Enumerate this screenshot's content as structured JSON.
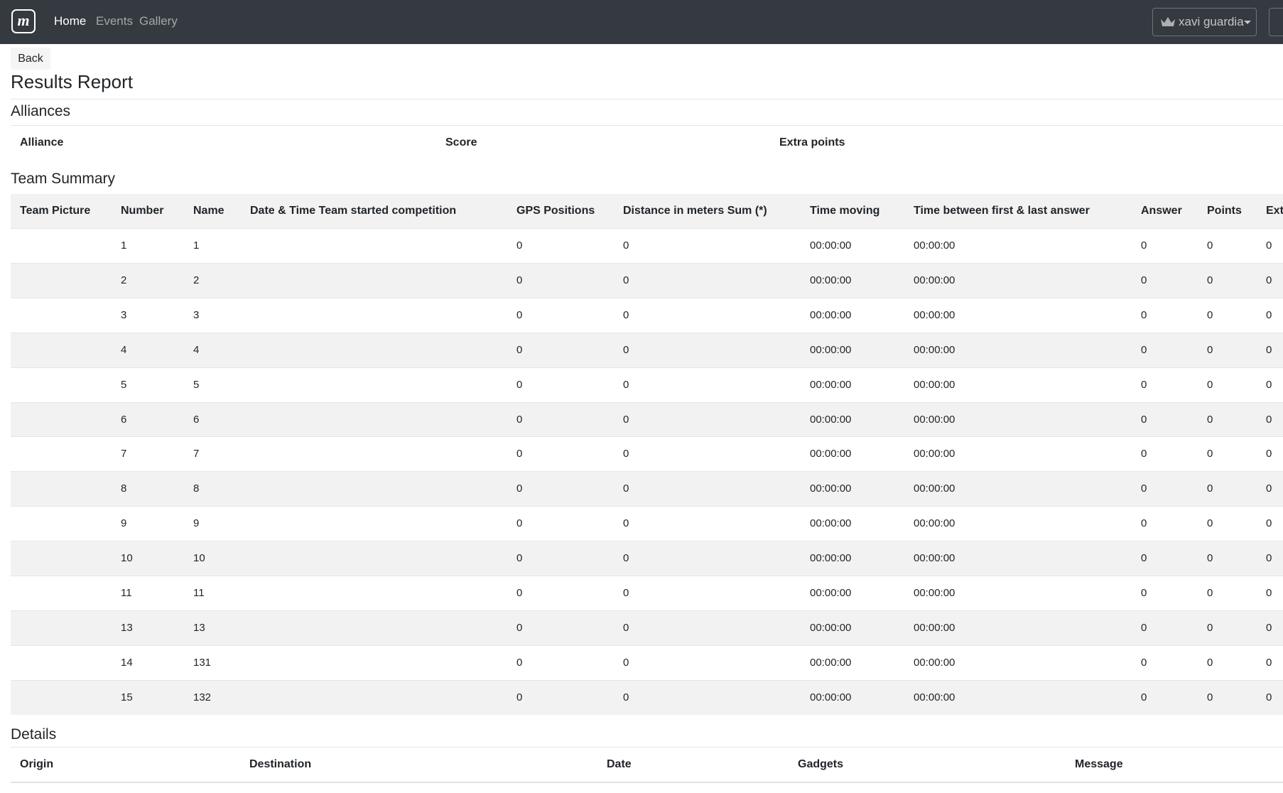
{
  "navbar": {
    "links": [
      "Home",
      "Events",
      "Gallery"
    ],
    "user": "xavi guardia"
  },
  "back": "Back",
  "title": "Results Report",
  "alliances": {
    "heading": "Alliances",
    "columns": [
      "Alliance",
      "Score",
      "Extra points"
    ]
  },
  "team_summary": {
    "heading": "Team Summary",
    "columns": [
      "Team Picture",
      "Number",
      "Name",
      "Date & Time Team started competition",
      "GPS Positions",
      "Distance in meters Sum (*)",
      "Time moving",
      "Time between first & last answer",
      "Answer",
      "Points",
      "Ext"
    ],
    "rows": [
      {
        "number": 1,
        "name": "1",
        "gps": 0,
        "distance": 0,
        "time_moving": "00:00:00",
        "time_between": "00:00:00",
        "answer": 0,
        "points": 0,
        "extra": 0
      },
      {
        "number": 2,
        "name": "2",
        "gps": 0,
        "distance": 0,
        "time_moving": "00:00:00",
        "time_between": "00:00:00",
        "answer": 0,
        "points": 0,
        "extra": 0
      },
      {
        "number": 3,
        "name": "3",
        "gps": 0,
        "distance": 0,
        "time_moving": "00:00:00",
        "time_between": "00:00:00",
        "answer": 0,
        "points": 0,
        "extra": 0
      },
      {
        "number": 4,
        "name": "4",
        "gps": 0,
        "distance": 0,
        "time_moving": "00:00:00",
        "time_between": "00:00:00",
        "answer": 0,
        "points": 0,
        "extra": 0
      },
      {
        "number": 5,
        "name": "5",
        "gps": 0,
        "distance": 0,
        "time_moving": "00:00:00",
        "time_between": "00:00:00",
        "answer": 0,
        "points": 0,
        "extra": 0
      },
      {
        "number": 6,
        "name": "6",
        "gps": 0,
        "distance": 0,
        "time_moving": "00:00:00",
        "time_between": "00:00:00",
        "answer": 0,
        "points": 0,
        "extra": 0
      },
      {
        "number": 7,
        "name": "7",
        "gps": 0,
        "distance": 0,
        "time_moving": "00:00:00",
        "time_between": "00:00:00",
        "answer": 0,
        "points": 0,
        "extra": 0
      },
      {
        "number": 8,
        "name": "8",
        "gps": 0,
        "distance": 0,
        "time_moving": "00:00:00",
        "time_between": "00:00:00",
        "answer": 0,
        "points": 0,
        "extra": 0
      },
      {
        "number": 9,
        "name": "9",
        "gps": 0,
        "distance": 0,
        "time_moving": "00:00:00",
        "time_between": "00:00:00",
        "answer": 0,
        "points": 0,
        "extra": 0
      },
      {
        "number": 10,
        "name": "10",
        "gps": 0,
        "distance": 0,
        "time_moving": "00:00:00",
        "time_between": "00:00:00",
        "answer": 0,
        "points": 0,
        "extra": 0
      },
      {
        "number": 11,
        "name": "11",
        "gps": 0,
        "distance": 0,
        "time_moving": "00:00:00",
        "time_between": "00:00:00",
        "answer": 0,
        "points": 0,
        "extra": 0
      },
      {
        "number": 13,
        "name": "13",
        "gps": 0,
        "distance": 0,
        "time_moving": "00:00:00",
        "time_between": "00:00:00",
        "answer": 0,
        "points": 0,
        "extra": 0
      },
      {
        "number": 14,
        "name": "131",
        "gps": 0,
        "distance": 0,
        "time_moving": "00:00:00",
        "time_between": "00:00:00",
        "answer": 0,
        "points": 0,
        "extra": 0
      },
      {
        "number": 15,
        "name": "132",
        "gps": 0,
        "distance": 0,
        "time_moving": "00:00:00",
        "time_between": "00:00:00",
        "answer": 0,
        "points": 0,
        "extra": 0
      }
    ]
  },
  "details": {
    "heading": "Details",
    "columns": [
      "Origin",
      "Destination",
      "Date",
      "Gadgets",
      "Message"
    ]
  }
}
